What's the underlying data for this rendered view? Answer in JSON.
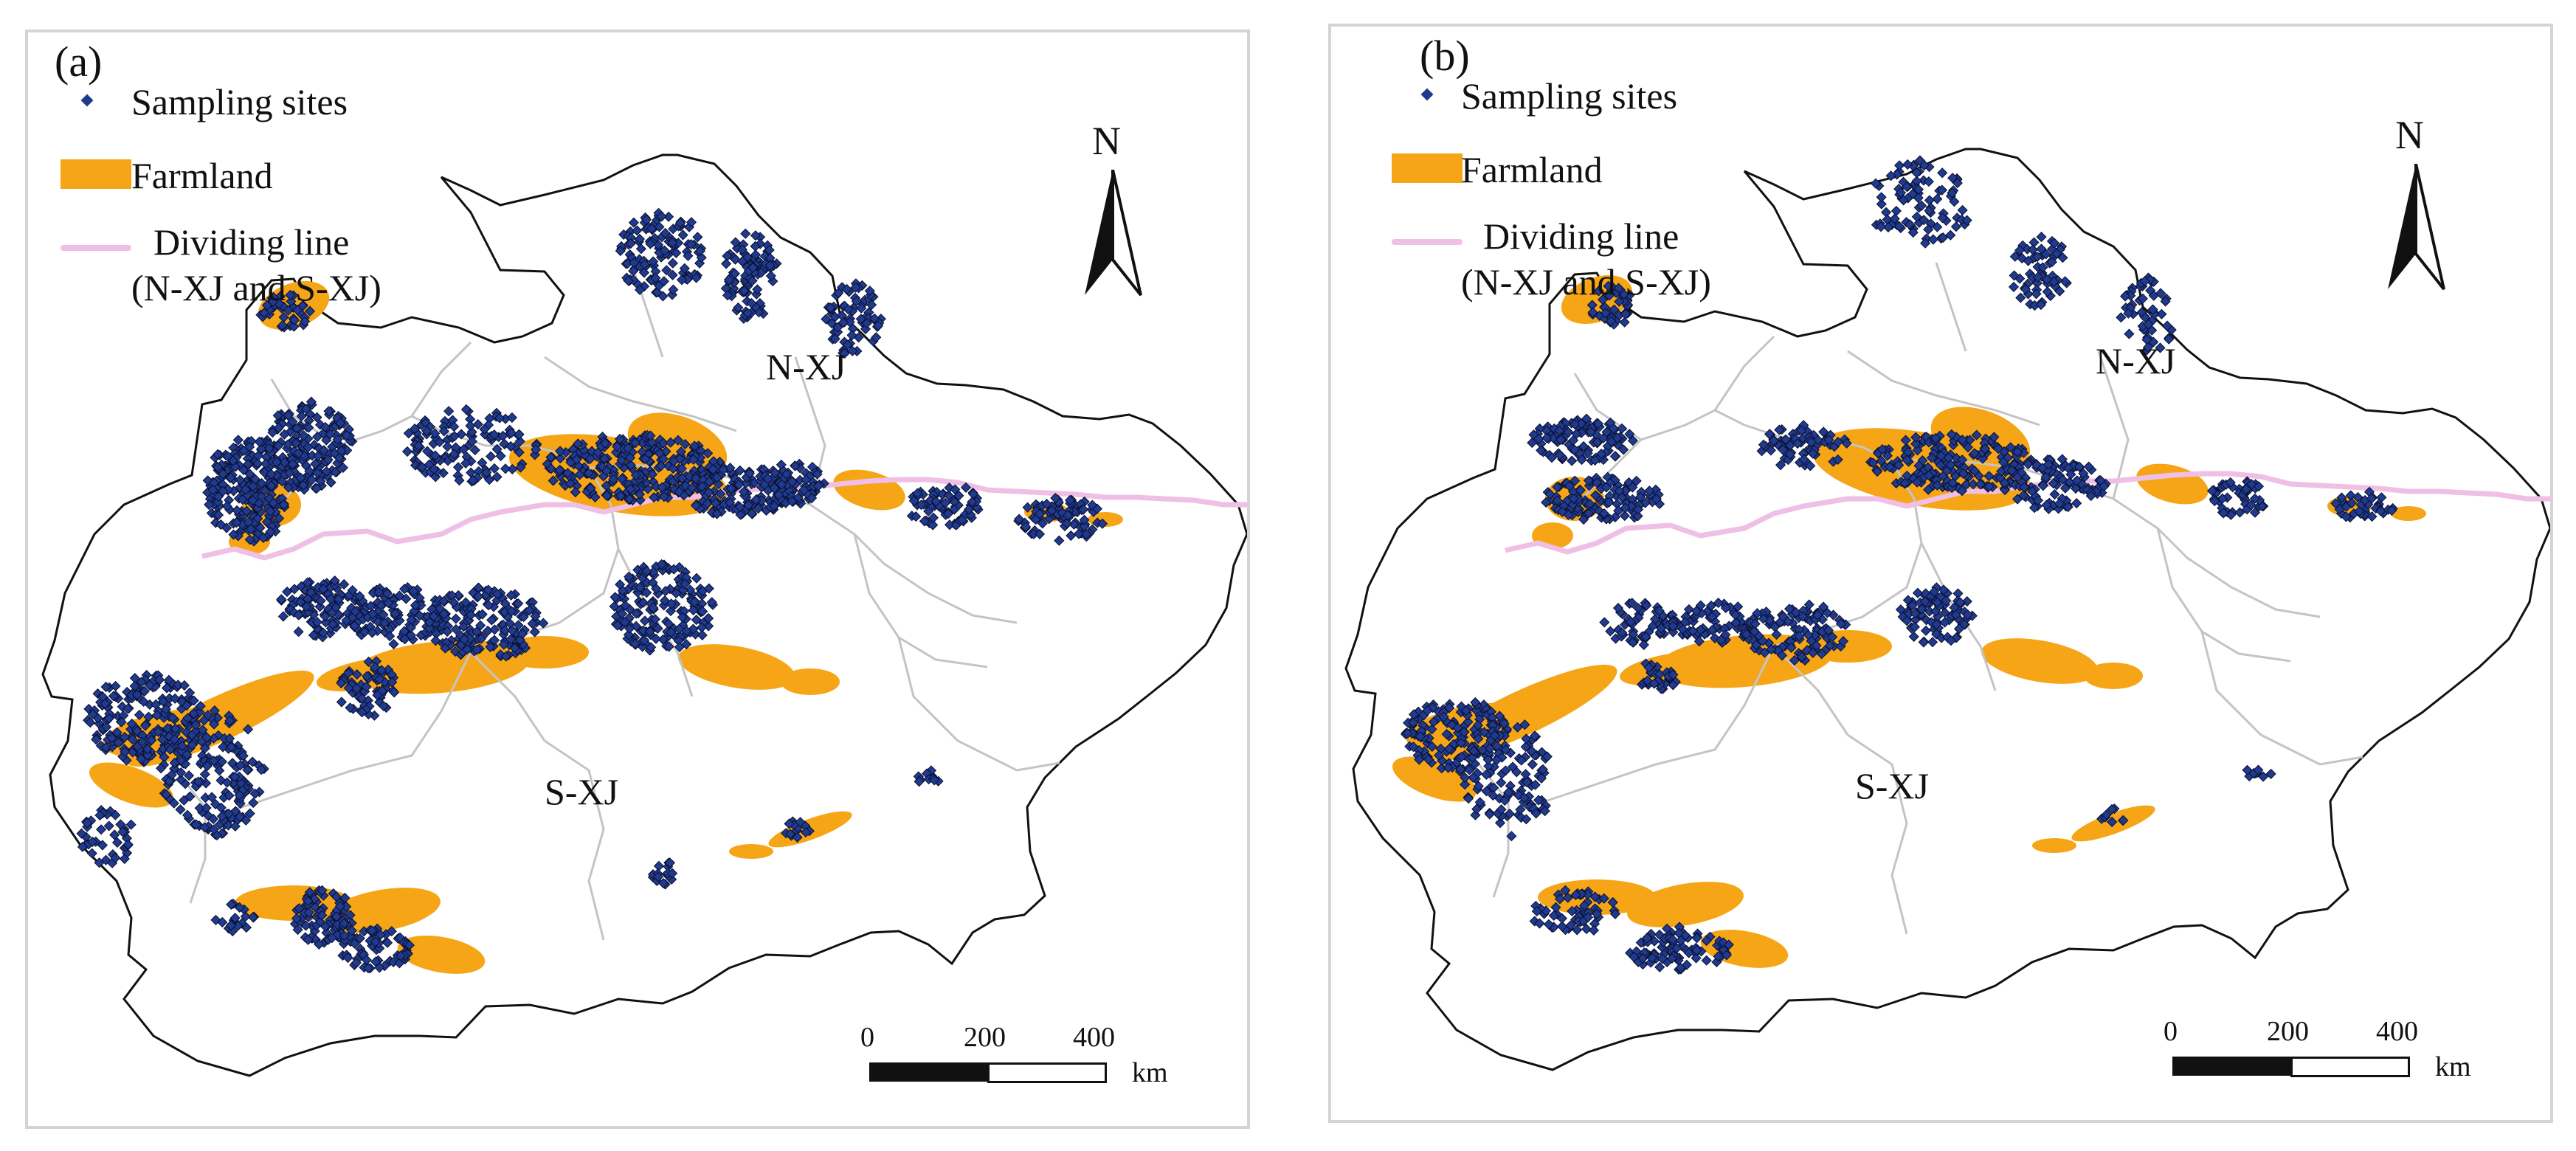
{
  "panels": [
    {
      "id": "a",
      "label": "(a)",
      "legend": {
        "sites": "Sampling sites",
        "farmland": "Farmland",
        "dividing_line_1": "Dividing line",
        "dividing_line_2": "(N-XJ and S-XJ)"
      },
      "regions": {
        "north": "N-XJ",
        "south": "S-XJ"
      },
      "north_arrow": "N",
      "scale": {
        "ticks": [
          "0",
          "200",
          "400"
        ],
        "unit": "km"
      },
      "site_density": "dense"
    },
    {
      "id": "b",
      "label": "(b)",
      "legend": {
        "sites": "Sampling sites",
        "farmland": "Farmland",
        "dividing_line_1": "Dividing line",
        "dividing_line_2": "(N-XJ and S-XJ)"
      },
      "regions": {
        "north": "N-XJ",
        "south": "S-XJ"
      },
      "north_arrow": "N",
      "scale": {
        "ticks": [
          "0",
          "200",
          "400"
        ],
        "unit": "km"
      },
      "site_density": "clustered"
    }
  ],
  "colors": {
    "sites": "#1f3a8f",
    "site_outline": "#0b0f2a",
    "farmland": "#f5a516",
    "dividing_line": "#f0bfe6",
    "boundary": "#111111",
    "internal_boundaries": "#c4c4c4"
  },
  "icons": {
    "north_arrow": "north-arrow-icon",
    "scale_bar": "scale-bar"
  }
}
